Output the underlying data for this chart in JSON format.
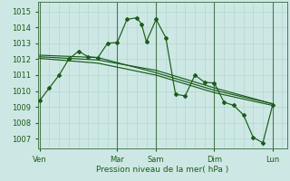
{
  "xlabel": "Pression niveau de la mer( hPa )",
  "bg_color": "#cde8e4",
  "grid_color": "#aad4cc",
  "line_color": "#1a5c1a",
  "day_line_color": "#4a7a50",
  "ylim": [
    1006.4,
    1015.6
  ],
  "yticks": [
    1007,
    1008,
    1009,
    1010,
    1011,
    1012,
    1013,
    1014,
    1015
  ],
  "xlim": [
    -0.2,
    25.5
  ],
  "day_labels": [
    "Ven",
    "Mar",
    "Sam",
    "Dim",
    "Lun"
  ],
  "day_positions": [
    0,
    8,
    12,
    18,
    24
  ],
  "main_x": [
    0,
    1,
    2,
    3,
    4,
    5,
    6,
    7,
    8,
    9,
    10,
    10.5,
    11,
    12,
    13,
    14,
    15,
    16,
    17,
    18,
    19,
    20,
    21,
    22,
    23,
    24
  ],
  "main_y": [
    1009.4,
    1010.2,
    1011.0,
    1012.0,
    1012.5,
    1012.15,
    1012.1,
    1013.0,
    1013.05,
    1014.5,
    1014.6,
    1014.2,
    1013.1,
    1014.5,
    1013.35,
    1009.8,
    1009.7,
    1011.0,
    1010.55,
    1010.5,
    1009.3,
    1009.1,
    1008.5,
    1007.1,
    1006.75,
    1009.1
  ],
  "trend1_x": [
    0,
    6,
    12,
    18,
    24
  ],
  "trend1_y": [
    1012.15,
    1011.95,
    1011.3,
    1010.2,
    1009.2
  ],
  "trend2_x": [
    0,
    6,
    12,
    18,
    24
  ],
  "trend2_y": [
    1012.05,
    1011.75,
    1011.0,
    1009.9,
    1009.1
  ],
  "trend3_x": [
    0,
    6,
    12,
    18,
    24
  ],
  "trend3_y": [
    1012.25,
    1012.1,
    1011.15,
    1010.05,
    1009.2
  ]
}
